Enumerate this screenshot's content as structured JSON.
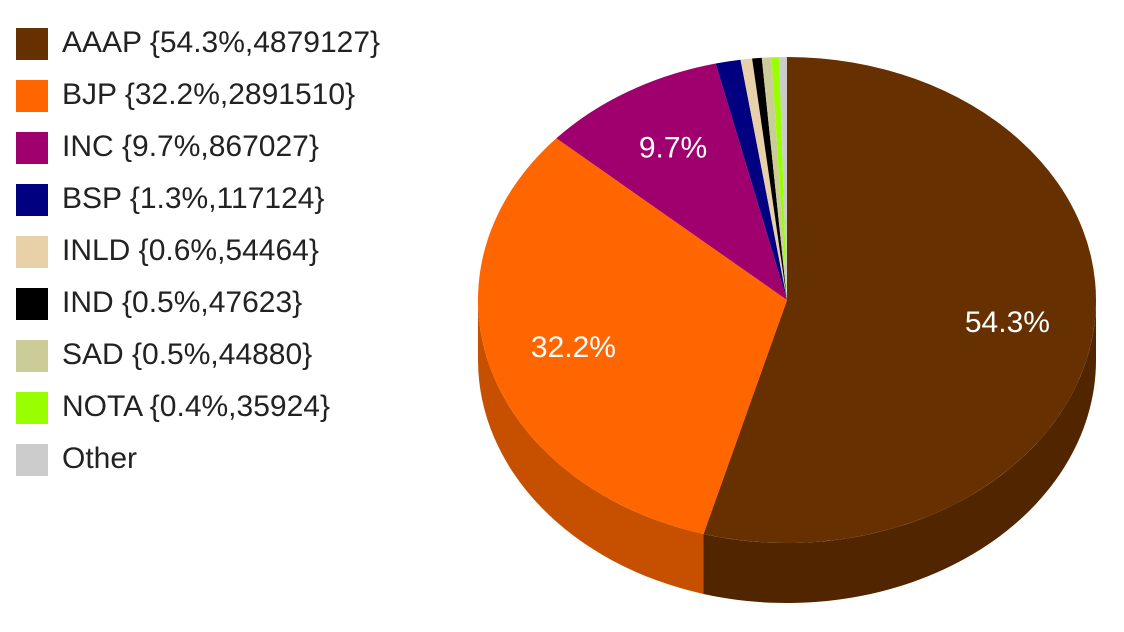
{
  "chart_data": {
    "type": "pie",
    "title": "",
    "slices": [
      {
        "label": "AAAP",
        "percent": 54.3,
        "value": 4879127,
        "legend": "AAAP {54.3%,4879127}",
        "color": "#663000"
      },
      {
        "label": "BJP",
        "percent": 32.2,
        "value": 2891510,
        "legend": "BJP {32.2%,2891510}",
        "color": "#FF6600"
      },
      {
        "label": "INC",
        "percent": 9.7,
        "value": 867027,
        "legend": "INC {9.7%,867027}",
        "color": "#A0006E"
      },
      {
        "label": "BSP",
        "percent": 1.3,
        "value": 117124,
        "legend": "BSP {1.3%,117124}",
        "color": "#000080"
      },
      {
        "label": "INLD",
        "percent": 0.6,
        "value": 54464,
        "legend": "INLD {0.6%,54464}",
        "color": "#E8D0A8"
      },
      {
        "label": "IND",
        "percent": 0.5,
        "value": 47623,
        "legend": "IND {0.5%,47623}",
        "color": "#000000"
      },
      {
        "label": "SAD",
        "percent": 0.5,
        "value": 44880,
        "legend": "SAD {0.5%,44880}",
        "color": "#CCCC99"
      },
      {
        "label": "NOTA",
        "percent": 0.4,
        "value": 35924,
        "legend": "NOTA {0.4%,35924}",
        "color": "#99FF00"
      },
      {
        "label": "Other",
        "percent": 0.4,
        "value": null,
        "legend": "Other",
        "color": "#CCCCCC"
      }
    ],
    "data_labels": [
      "54.3%",
      "32.2%",
      "9.7%"
    ],
    "legend_position": "left",
    "style": "3d"
  }
}
